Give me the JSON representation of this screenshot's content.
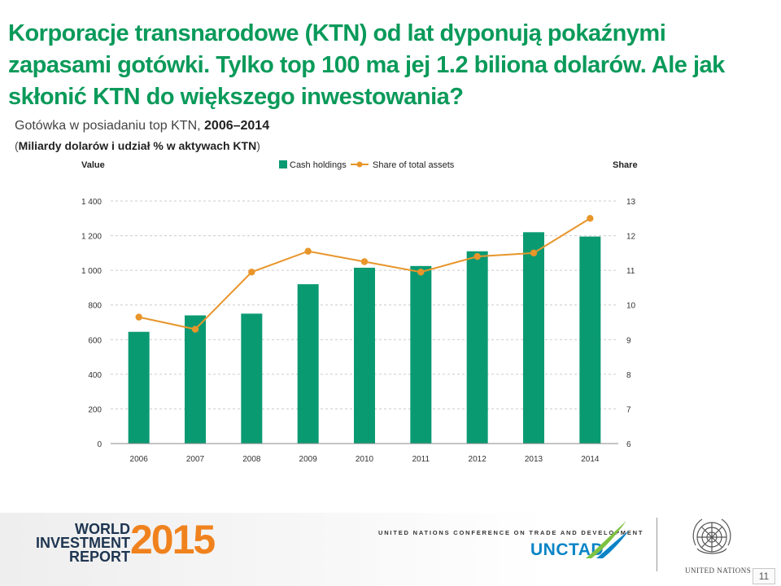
{
  "slide": {
    "headline": "Korporacje transnarodowe (KTN) od lat dyponują pokaźnymi zapasami gotówki. Tylko top 100 ma jej 1.2 biliona dolarów. Ale jak skłonić KTN do większego inwestowania?",
    "subtitle_prefix": "Gotówka w posiadaniu top KTN, ",
    "subtitle_years": "2006–2014",
    "units_open": "(",
    "units_text": "Miliardy dolarów i udział % w aktywach KTN",
    "units_close": ")",
    "page_number": "11"
  },
  "colors": {
    "bar": "#0a9a72",
    "line": "#e8952a",
    "headline": "#0a9a5a",
    "grid": "#cccccc"
  },
  "chart_data": {
    "type": "bar",
    "categories": [
      "2006",
      "2007",
      "2008",
      "2009",
      "2010",
      "2011",
      "2012",
      "2013",
      "2014"
    ],
    "series": [
      {
        "name": "Cash holdings",
        "type": "bar",
        "axis": "left",
        "values": [
          645,
          740,
          750,
          920,
          1015,
          1025,
          1110,
          1220,
          1195
        ]
      },
      {
        "name": "Share of total assets",
        "type": "line",
        "axis": "right",
        "values": [
          9.65,
          9.3,
          10.95,
          11.55,
          11.25,
          10.95,
          11.4,
          11.5,
          12.5
        ]
      }
    ],
    "left_axis": {
      "label": "Value",
      "min": 0,
      "max": 1400,
      "ticks": [
        0,
        200,
        400,
        600,
        800,
        1000,
        1200,
        1400
      ],
      "tick_labels": [
        "0",
        "200",
        "400",
        "600",
        "800",
        "1 000",
        "1 200",
        "1 400"
      ]
    },
    "right_axis": {
      "label": "Share",
      "min": 6,
      "max": 13,
      "ticks": [
        6,
        7,
        8,
        9,
        10,
        11,
        12,
        13
      ],
      "tick_labels": [
        "6",
        "7",
        "8",
        "9",
        "10",
        "11",
        "12",
        "13"
      ]
    },
    "legend": {
      "placement": "top-center",
      "entries": [
        "Cash holdings",
        "Share of total assets"
      ]
    },
    "grid": "dashed-horizontal"
  },
  "footer": {
    "wir_lines": [
      "WORLD",
      "INVESTMENT",
      "REPORT"
    ],
    "wir_year": "2015",
    "unctad_full": "UNITED NATIONS CONFERENCE ON TRADE AND DEVELOPMENT",
    "unctad_logo": "UNCTAD",
    "un_label": "UNITED NATIONS",
    "un_icon": "un-emblem-icon",
    "unctad_icon": "unctad-swoosh-icon"
  }
}
